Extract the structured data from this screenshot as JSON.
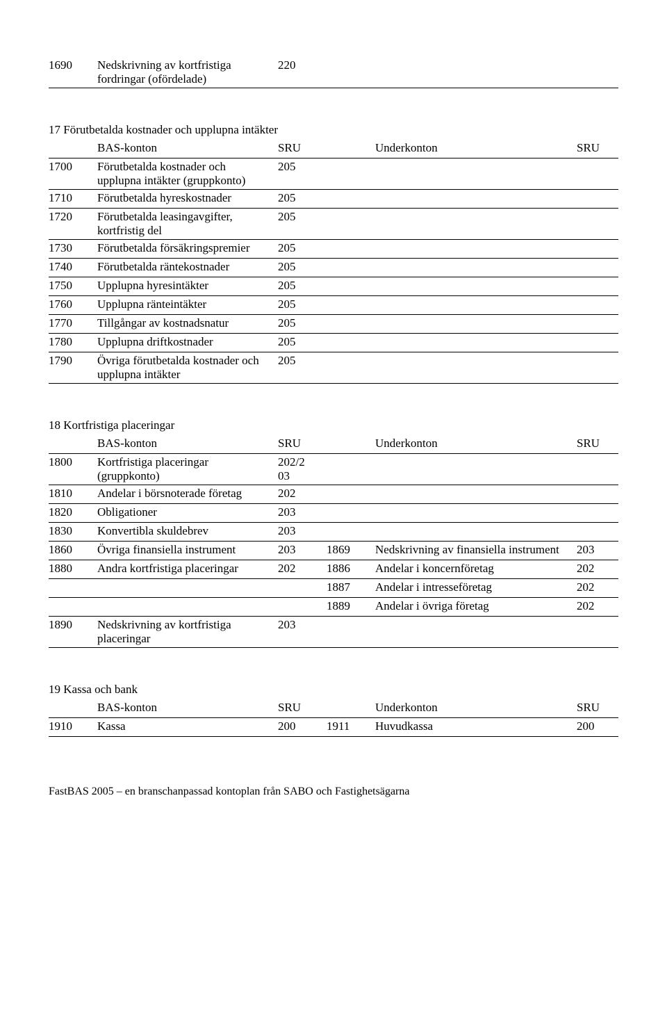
{
  "headers": {
    "bas": "BAS-konton",
    "sru": "SRU",
    "under": "Underkonton"
  },
  "section1": {
    "rows": [
      {
        "code": "1690",
        "desc": "Nedskrivning av kortfristiga fordringar (ofördelade)",
        "sru": "220"
      }
    ]
  },
  "section2": {
    "title": "17 Förutbetalda kostnader och upplupna intäkter",
    "rows": [
      {
        "code": "1700",
        "desc": "Förutbetalda kostnader och upplupna intäkter (gruppkonto)",
        "sru": "205"
      },
      {
        "code": "1710",
        "desc": "Förutbetalda hyreskostnader",
        "sru": "205"
      },
      {
        "code": "1720",
        "desc": "Förutbetalda leasingavgifter, kortfristig del",
        "sru": "205"
      },
      {
        "code": "1730",
        "desc": "Förutbetalda försäkringspremier",
        "sru": "205"
      },
      {
        "code": "1740",
        "desc": "Förutbetalda räntekostnader",
        "sru": "205"
      },
      {
        "code": "1750",
        "desc": "Upplupna hyresintäkter",
        "sru": "205"
      },
      {
        "code": "1760",
        "desc": "Upplupna ränteintäkter",
        "sru": "205"
      },
      {
        "code": "1770",
        "desc": "Tillgångar av kostnadsnatur",
        "sru": "205"
      },
      {
        "code": "1780",
        "desc": "Upplupna driftkostnader",
        "sru": "205"
      },
      {
        "code": "1790",
        "desc": "Övriga förutbetalda kostnader och upplupna intäkter",
        "sru": "205"
      }
    ]
  },
  "section3": {
    "title": "18 Kortfristiga placeringar",
    "rows": [
      {
        "code": "1800",
        "desc": "Kortfristiga placeringar (gruppkonto)",
        "sru": "202/2\n03"
      },
      {
        "code": "1810",
        "desc": "Andelar i börsnoterade företag",
        "sru": "202"
      },
      {
        "code": "1820",
        "desc": "Obligationer",
        "sru": "203"
      },
      {
        "code": "1830",
        "desc": "Konvertibla skuldebrev",
        "sru": "203"
      },
      {
        "code": "1860",
        "desc": "Övriga finansiella instrument",
        "sru": "203",
        "ucode": "1869",
        "udesc": "Nedskrivning av finansiella instrument",
        "usru": "203"
      },
      {
        "code": "1880",
        "desc": "Andra kortfristiga placeringar",
        "sru": "202",
        "ucode": "1886",
        "udesc": "Andelar i koncernföretag",
        "usru": "202"
      },
      {
        "code": "",
        "desc": "",
        "sru": "",
        "ucode": "1887",
        "udesc": "Andelar i intresseföretag",
        "usru": "202"
      },
      {
        "code": "",
        "desc": "",
        "sru": "",
        "ucode": "1889",
        "udesc": "Andelar i övriga företag",
        "usru": "202"
      },
      {
        "code": "1890",
        "desc": "Nedskrivning av kortfristiga placeringar",
        "sru": "203"
      }
    ]
  },
  "section4": {
    "title": "19 Kassa och bank",
    "rows": [
      {
        "code": "1910",
        "desc": "Kassa",
        "sru": "200",
        "ucode": "1911",
        "udesc": "Huvudkassa",
        "usru": "200"
      }
    ]
  },
  "footer": "FastBAS 2005 – en branschanpassad kontoplan från SABO och Fastighetsägarna"
}
